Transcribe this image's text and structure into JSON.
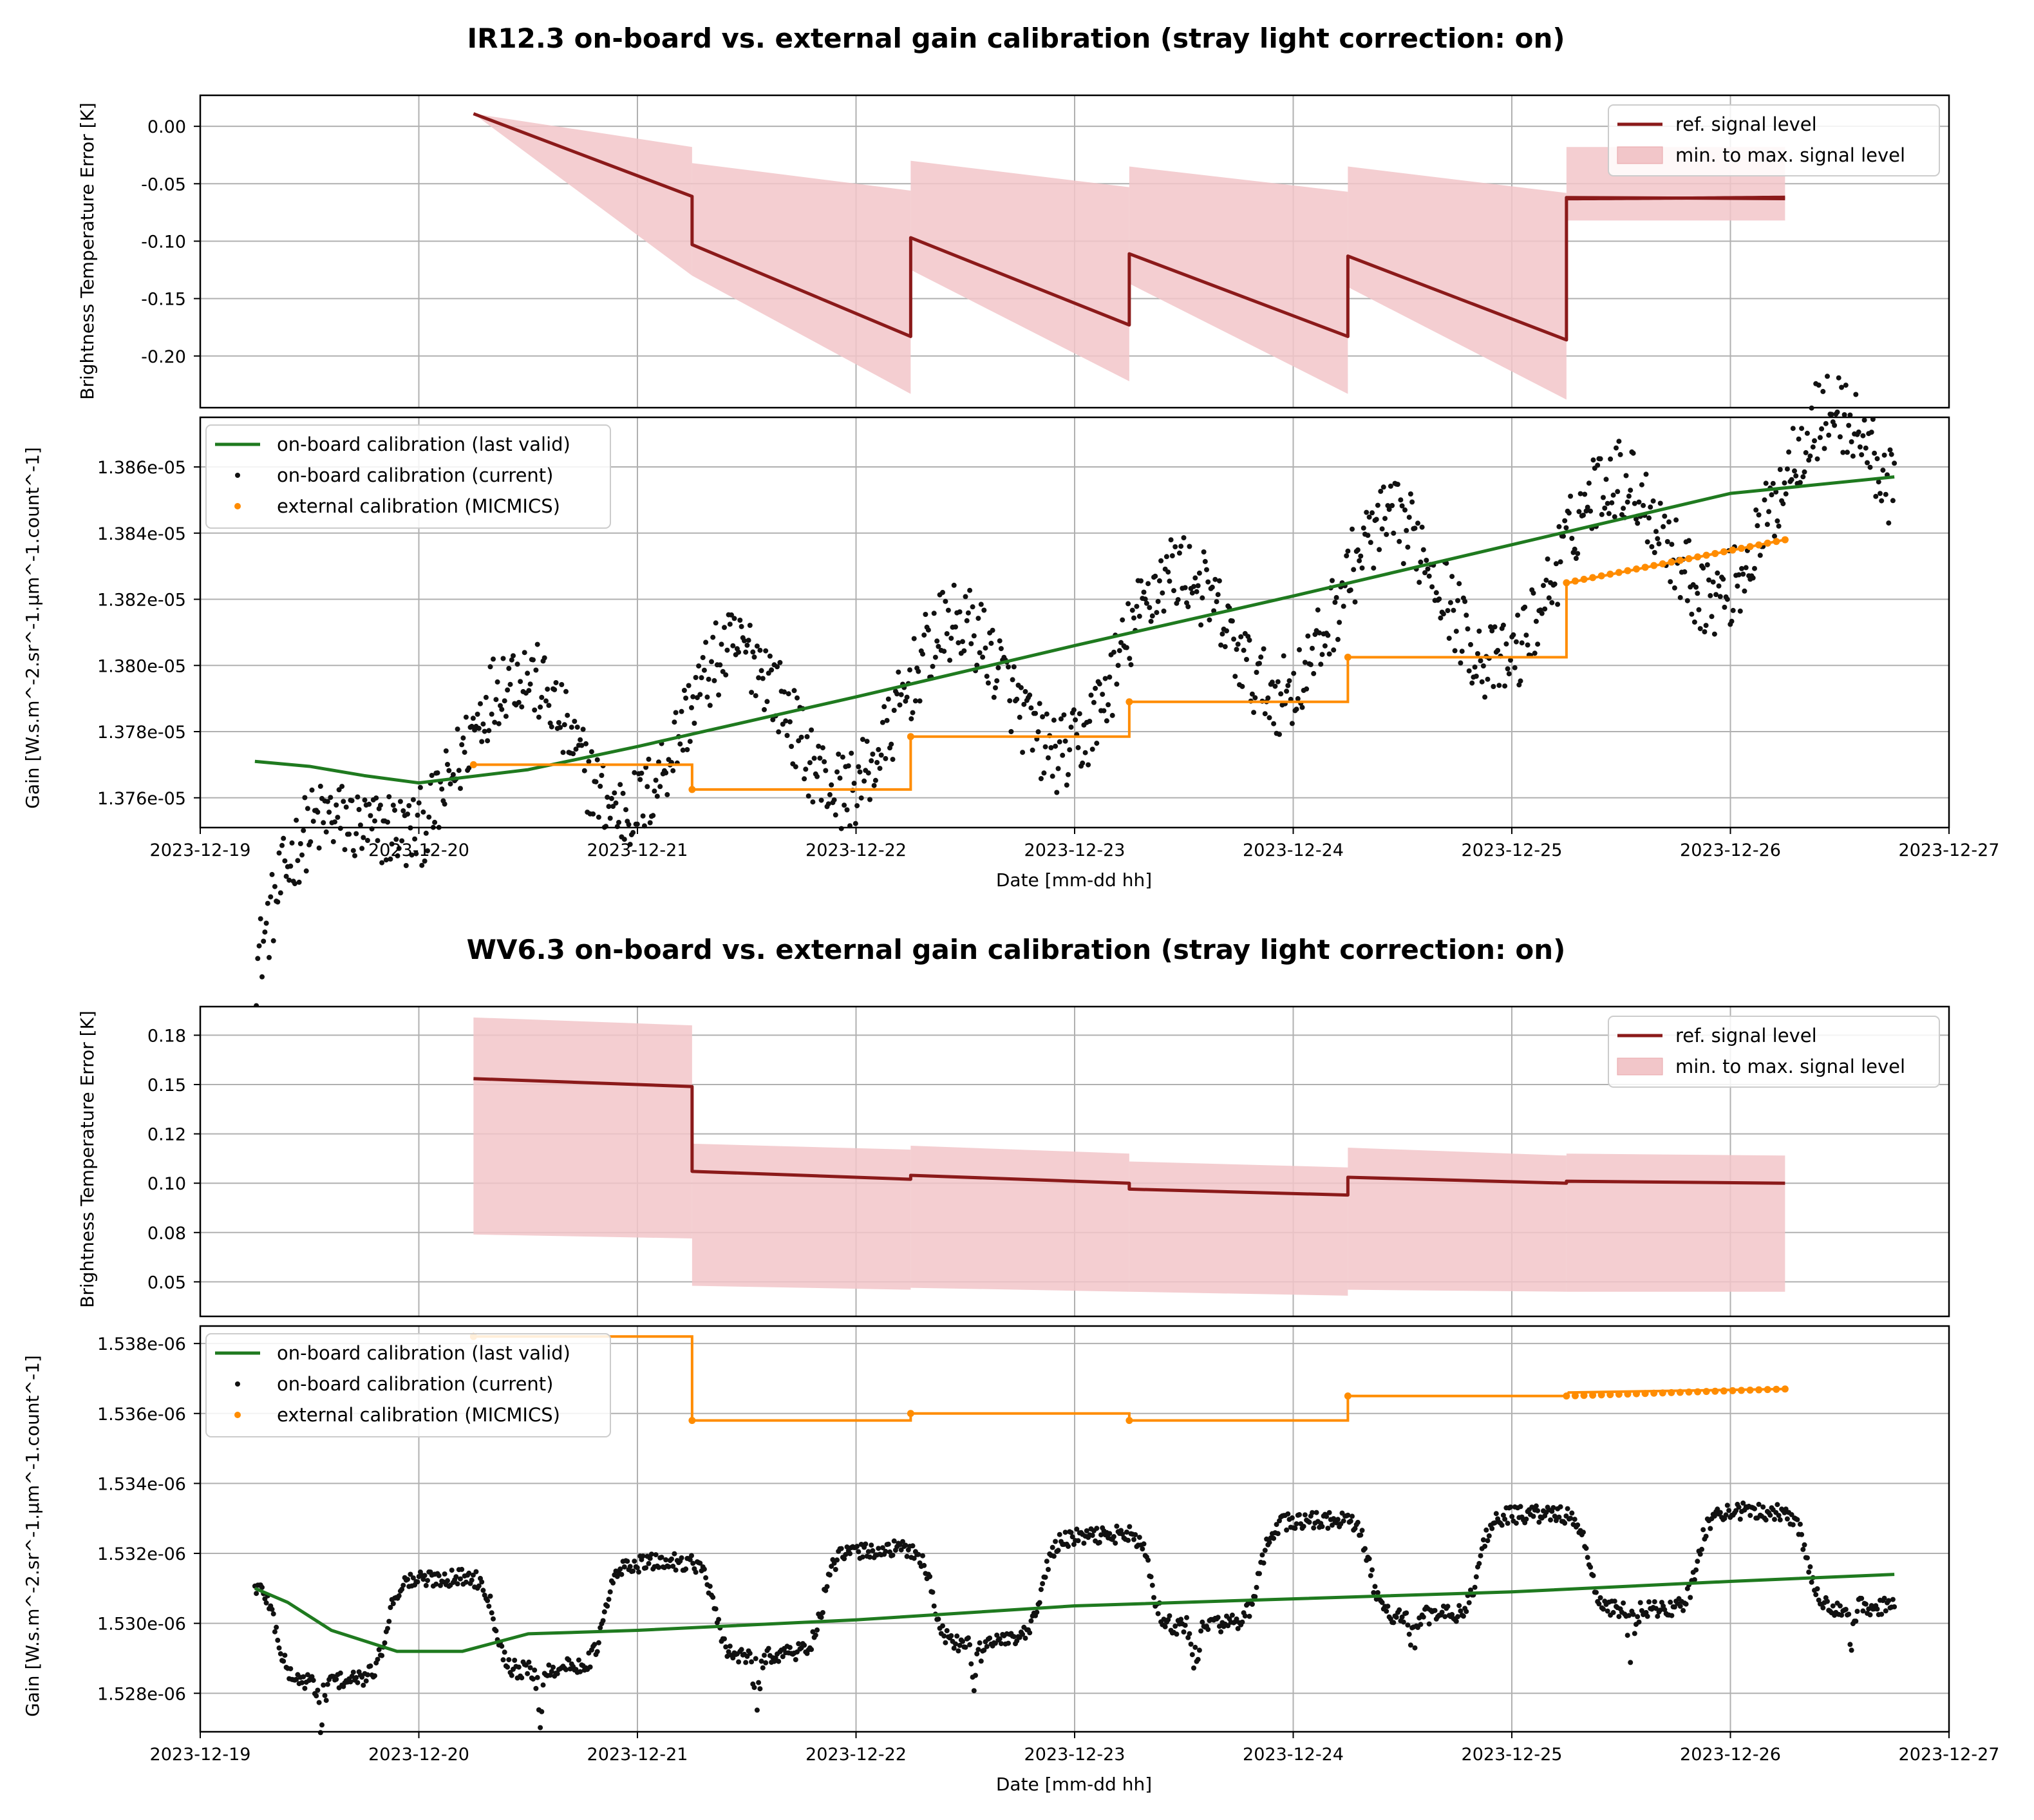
{
  "figure": {
    "x_ticks": [
      "2023-12-19",
      "2023-12-20",
      "2023-12-21",
      "2023-12-22",
      "2023-12-23",
      "2023-12-24",
      "2023-12-25",
      "2023-12-26",
      "2023-12-27"
    ],
    "xlabel": "Date [mm-dd hh]",
    "colors": {
      "ref": "#8b1a1a",
      "band": "#f2c6c9",
      "lastvalid": "#1f7a1f",
      "current": "#111111",
      "external": "#ff8c00"
    }
  },
  "chart_data": [
    {
      "panel": "IR12.3",
      "title": "IR12.3 on-board vs. external gain calibration (stray light correction: on)",
      "xlim": [
        0,
        8
      ],
      "top": {
        "type": "line",
        "ylabel": "Brightness Temperature Error [K]",
        "ylim": [
          -0.245,
          0.027
        ],
        "yticks": [
          0.0,
          -0.05,
          -0.1,
          -0.15,
          -0.2
        ],
        "ytick_labels": [
          "0.00",
          "-0.05",
          "-0.10",
          "-0.15",
          "-0.20"
        ],
        "legend": [
          "ref. signal level",
          "min. to max. signal level"
        ],
        "legend_position": "top-right",
        "ref_segments": [
          {
            "x": [
              1.25,
              2.25
            ],
            "y": [
              0.011,
              -0.061
            ]
          },
          {
            "x": [
              2.25,
              3.25
            ],
            "y": [
              -0.103,
              -0.183
            ]
          },
          {
            "x": [
              3.25,
              4.25
            ],
            "y": [
              -0.097,
              -0.173
            ]
          },
          {
            "x": [
              4.25,
              5.25
            ],
            "y": [
              -0.111,
              -0.183
            ]
          },
          {
            "x": [
              5.25,
              6.25
            ],
            "y": [
              -0.113,
              -0.186
            ]
          },
          {
            "x": [
              6.25,
              7.25
            ],
            "y": [
              -0.062,
              -0.063
            ]
          }
        ],
        "band_segments": [
          {
            "x": [
              1.25,
              2.25
            ],
            "lo": [
              0.011,
              -0.13
            ],
            "hi": [
              0.011,
              -0.018
            ]
          },
          {
            "x": [
              2.25,
              3.25
            ],
            "lo": [
              -0.13,
              -0.233
            ],
            "hi": [
              -0.032,
              -0.056
            ]
          },
          {
            "x": [
              3.25,
              4.25
            ],
            "lo": [
              -0.125,
              -0.222
            ],
            "hi": [
              -0.03,
              -0.053
            ]
          },
          {
            "x": [
              4.25,
              5.25
            ],
            "lo": [
              -0.137,
              -0.233
            ],
            "hi": [
              -0.035,
              -0.057
            ]
          },
          {
            "x": [
              5.25,
              6.25
            ],
            "lo": [
              -0.14,
              -0.238
            ],
            "hi": [
              -0.035,
              -0.058
            ]
          },
          {
            "x": [
              6.25,
              7.25
            ],
            "lo": [
              -0.082,
              -0.082
            ],
            "hi": [
              -0.018,
              -0.018
            ]
          }
        ]
      },
      "bottom": {
        "type": "scatter+line",
        "ylabel": "Gain [W.s.m^-2.sr^-1.µm^-1.count^-1]",
        "ylim": [
          1.3751e-05,
          1.3875e-05
        ],
        "yticks": [
          1.376e-05,
          1.378e-05,
          1.38e-05,
          1.382e-05,
          1.384e-05,
          1.386e-05
        ],
        "ytick_labels": [
          "1.376e-05",
          "1.378e-05",
          "1.380e-05",
          "1.382e-05",
          "1.384e-05",
          "1.386e-05"
        ],
        "legend": [
          "on-board calibration (last valid)",
          "on-board calibration (current)",
          "external calibration (MICMICS)"
        ],
        "legend_position": "top-left",
        "last_valid": {
          "x": [
            0.25,
            0.5,
            0.75,
            1.0,
            1.5,
            2.0,
            3.0,
            4.0,
            5.0,
            6.0,
            7.0,
            7.75
          ],
          "y": [
            1.3771e-05,
            1.37695e-05,
            1.37667e-05,
            1.37645e-05,
            1.37685e-05,
            1.37755e-05,
            1.37905e-05,
            1.3806e-05,
            1.3821e-05,
            1.38365e-05,
            1.3852e-05,
            1.3857e-05
          ]
        },
        "current": {
          "baseline": [
            1.37e-05,
            1.3772e-05,
            1.3775e-05,
            1.37805e-05,
            1.37837e-05,
            1.37885e-05,
            1.3797e-05,
            1.38087e-05,
            1.38195e-05,
            1.3822e-05,
            1.38347e-05,
            1.3848e-05,
            1.3858e-05
          ],
          "amplitude": 2.3e-08,
          "period_days": 1,
          "peak_phase": 0.45,
          "noise": 1.2e-08,
          "x_start": 0.25,
          "x_end": 7.75,
          "n": 1150
        },
        "external": {
          "x": [
            1.25,
            2.25,
            3.25,
            4.25,
            5.25,
            6.25,
            6.26,
            7.25
          ],
          "y": [
            1.377e-05,
            1.37625e-05,
            1.37785e-05,
            1.3789e-05,
            1.38025e-05,
            1.3825e-05,
            1.3825e-05,
            1.3838e-05
          ],
          "dense_from": 6.25
        }
      }
    },
    {
      "panel": "WV6.3",
      "title": "WV6.3 on-board vs. external gain calibration (stray light correction: on)",
      "xlim": [
        0,
        8
      ],
      "top": {
        "type": "line",
        "ylabel": "Brightness Temperature Error [K]",
        "ylim": [
          0.0325,
          0.1895
        ],
        "yticks": [
          0.05,
          0.075,
          0.1,
          0.125,
          0.15,
          0.175
        ],
        "ytick_labels": [
          "0.05",
          "0.08",
          "0.10",
          "0.12",
          "0.15",
          "0.18"
        ],
        "legend": [
          "ref. signal level",
          "min. to max. signal level"
        ],
        "legend_position": "top-right",
        "ref_segments": [
          {
            "x": [
              1.25,
              2.25
            ],
            "y": [
              0.153,
              0.149
            ]
          },
          {
            "x": [
              2.25,
              3.25
            ],
            "y": [
              0.106,
              0.102
            ]
          },
          {
            "x": [
              3.25,
              4.25
            ],
            "y": [
              0.104,
              0.1
            ]
          },
          {
            "x": [
              4.25,
              5.25
            ],
            "y": [
              0.097,
              0.094
            ]
          },
          {
            "x": [
              5.25,
              6.25
            ],
            "y": [
              0.103,
              0.1
            ]
          },
          {
            "x": [
              6.25,
              7.25
            ],
            "y": [
              0.101,
              0.1
            ]
          }
        ],
        "band_segments": [
          {
            "x": [
              1.25,
              2.25
            ],
            "lo": [
              0.074,
              0.072
            ],
            "hi": [
              0.184,
              0.18
            ]
          },
          {
            "x": [
              2.25,
              3.25
            ],
            "lo": [
              0.048,
              0.046
            ],
            "hi": [
              0.12,
              0.117
            ]
          },
          {
            "x": [
              3.25,
              4.25
            ],
            "lo": [
              0.047,
              0.045
            ],
            "hi": [
              0.119,
              0.115
            ]
          },
          {
            "x": [
              4.25,
              5.25
            ],
            "lo": [
              0.045,
              0.043
            ],
            "hi": [
              0.111,
              0.108
            ]
          },
          {
            "x": [
              5.25,
              6.25
            ],
            "lo": [
              0.046,
              0.045
            ],
            "hi": [
              0.118,
              0.114
            ]
          },
          {
            "x": [
              6.25,
              7.25
            ],
            "lo": [
              0.045,
              0.045
            ],
            "hi": [
              0.115,
              0.114
            ]
          }
        ]
      },
      "bottom": {
        "type": "scatter+line",
        "ylabel": "Gain [W.s.m^-2.sr^-1.µm^-1.count^-1]",
        "ylim": [
          1.5269e-06,
          1.5385e-06
        ],
        "yticks": [
          1.528e-06,
          1.53e-06,
          1.532e-06,
          1.534e-06,
          1.536e-06,
          1.538e-06
        ],
        "ytick_labels": [
          "1.528e-06",
          "1.530e-06",
          "1.532e-06",
          "1.534e-06",
          "1.536e-06",
          "1.538e-06"
        ],
        "legend": [
          "on-board calibration (last valid)",
          "on-board calibration (current)",
          "external calibration (MICMICS)"
        ],
        "legend_position": "top-left",
        "last_valid": {
          "x": [
            0.25,
            0.4,
            0.6,
            0.9,
            1.2,
            1.5,
            2.0,
            3.0,
            4.0,
            5.0,
            6.0,
            7.0,
            7.75
          ],
          "y": [
            1.531e-06,
            1.5306e-06,
            1.5298e-06,
            1.5292e-06,
            1.5292e-06,
            1.5297e-06,
            1.5298e-06,
            1.5301e-06,
            1.5305e-06,
            1.5307e-06,
            1.5309e-06,
            1.5312e-06,
            1.5314e-06
          ]
        },
        "current": {
          "baseline": [
            1.5297e-06,
            1.5298e-06,
            1.53e-06,
            1.5303e-06,
            1.5305e-06,
            1.5307e-06,
            1.5309e-06,
            1.5312e-06,
            1.5315e-06,
            1.5316e-06,
            1.5317e-06,
            1.5318e-06,
            1.5318e-06,
            1.5319e-06
          ],
          "amplitude": 1.4e-09,
          "period_days": 1,
          "peak_phase": 0.1,
          "dip_phase": 0.55,
          "dip_depth": 1.8e-09,
          "noise": 2.5e-10,
          "x_start": 0.25,
          "x_end": 7.75,
          "n": 1150
        },
        "external": {
          "x": [
            1.25,
            2.25,
            3.25,
            4.25,
            5.25,
            6.25,
            6.26,
            7.25
          ],
          "y": [
            1.5382e-06,
            1.5358e-06,
            1.536e-06,
            1.5358e-06,
            1.5365e-06,
            1.5365e-06,
            1.5366e-06,
            1.5367e-06
          ],
          "dense_from": 6.25
        }
      }
    }
  ]
}
